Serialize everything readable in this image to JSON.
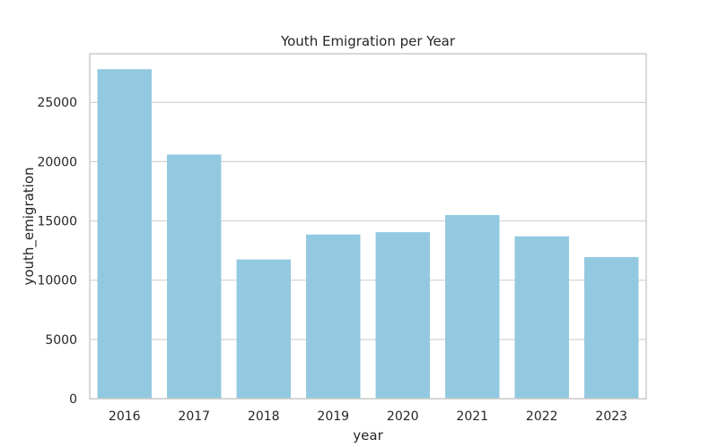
{
  "chart_data": {
    "type": "bar",
    "title": "Youth Emigration per Year",
    "xlabel": "year",
    "ylabel": "youth_emigration",
    "categories": [
      "2016",
      "2017",
      "2018",
      "2019",
      "2020",
      "2021",
      "2022",
      "2023"
    ],
    "values": [
      27800,
      20600,
      11750,
      13850,
      14050,
      15500,
      13700,
      11950
    ],
    "ylim": [
      0,
      29100
    ],
    "yticks": [
      0,
      5000,
      10000,
      15000,
      20000,
      25000
    ],
    "ytick_labels": [
      "0",
      "5000",
      "10000",
      "15000",
      "20000",
      "25000"
    ],
    "grid": "horizontal",
    "colors": {
      "bar": "#93c9e0",
      "grid": "#d3d3d3",
      "axis_frame": "#cccccc",
      "text": "#262626"
    }
  }
}
